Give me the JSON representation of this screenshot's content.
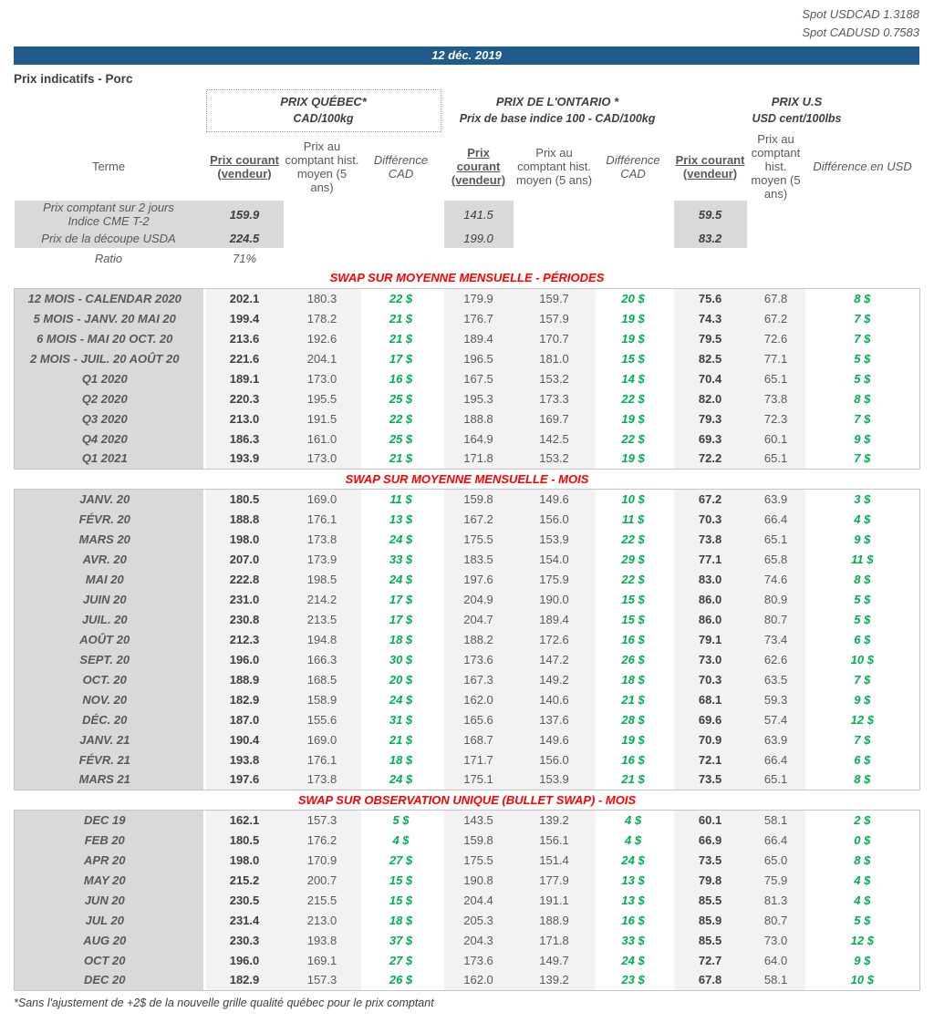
{
  "header": {
    "spot_usdcad": "Spot USDCAD 1.3188",
    "spot_cadusd": "Spot CADUSD 0.7583",
    "date": "12 déc. 2019",
    "title": "Prix indicatifs - Porc"
  },
  "columns": {
    "terme": "Terme",
    "groups": [
      {
        "id": "quebec",
        "title": "PRIX QUÉBEC*",
        "unit": "CAD/100kg",
        "cols": [
          "Prix courant (vendeur)",
          "Prix au comptant hist. moyen (5 ans)",
          "Différence CAD"
        ]
      },
      {
        "id": "ontario",
        "title": "PRIX DE L'ONTARIO *",
        "unit": "Prix de base indice 100 - CAD/100kg",
        "cols": [
          "Prix courant (vendeur)",
          "Prix au comptant hist. moyen (5 ans)",
          "Différence CAD"
        ]
      },
      {
        "id": "us",
        "title": "PRIX U.S",
        "unit": "USD cent/100lbs",
        "cols": [
          "Prix courant (vendeur)",
          "Prix au comptant hist. moyen (5 ans)",
          "Différence en USD"
        ]
      }
    ]
  },
  "spot_rows": [
    {
      "label": "Prix comptant sur 2 jours\nIndice CME T-2",
      "quebec": "159.9",
      "ontario": "141.5",
      "us": "59.5"
    },
    {
      "label": "Prix de la découpe USDA",
      "quebec": "224.5",
      "ontario": "199.0",
      "us": "83.2"
    }
  ],
  "ratio_row": {
    "label": "Ratio",
    "value": "71%"
  },
  "sections": [
    {
      "title": "SWAP SUR MOYENNE MENSUELLE - PÉRIODES",
      "rows": [
        [
          "12 MOIS - CALENDAR 2020",
          "202.1",
          "180.3",
          "22 $",
          "179.9",
          "159.7",
          "20 $",
          "75.6",
          "67.8",
          "8 $"
        ],
        [
          "5 MOIS -  JANV. 20 MAI 20",
          "199.4",
          "178.2",
          "21 $",
          "176.7",
          "157.9",
          "19 $",
          "74.3",
          "67.2",
          "7 $"
        ],
        [
          "6 MOIS -  MAI 20 OCT. 20",
          "213.6",
          "192.6",
          "21 $",
          "189.4",
          "170.7",
          "19 $",
          "79.5",
          "72.6",
          "7 $"
        ],
        [
          "2 MOIS -  JUIL. 20  AOÛT 20",
          "221.6",
          "204.1",
          "17 $",
          "196.5",
          "181.0",
          "15 $",
          "82.5",
          "77.1",
          "5 $"
        ],
        [
          "Q1 2020",
          "189.1",
          "173.0",
          "16 $",
          "167.5",
          "153.2",
          "14 $",
          "70.4",
          "65.1",
          "5 $"
        ],
        [
          "Q2 2020",
          "220.3",
          "195.5",
          "25 $",
          "195.3",
          "173.3",
          "22 $",
          "82.0",
          "73.8",
          "8 $"
        ],
        [
          "Q3 2020",
          "213.0",
          "191.5",
          "22 $",
          "188.8",
          "169.7",
          "19 $",
          "79.3",
          "72.3",
          "7 $"
        ],
        [
          "Q4 2020",
          "186.3",
          "161.0",
          "25 $",
          "164.9",
          "142.5",
          "22 $",
          "69.3",
          "60.1",
          "9 $"
        ],
        [
          "Q1 2021",
          "193.9",
          "173.0",
          "21 $",
          "171.8",
          "153.2",
          "19 $",
          "72.2",
          "65.1",
          "7 $"
        ]
      ]
    },
    {
      "title": "SWAP SUR MOYENNE MENSUELLE - MOIS",
      "rows": [
        [
          "JANV. 20",
          "180.5",
          "169.0",
          "11 $",
          "159.8",
          "149.6",
          "10 $",
          "67.2",
          "63.9",
          "3 $"
        ],
        [
          "FÉVR. 20",
          "188.8",
          "176.1",
          "13 $",
          "167.2",
          "156.0",
          "11 $",
          "70.3",
          "66.4",
          "4 $"
        ],
        [
          "MARS 20",
          "198.0",
          "173.8",
          "24 $",
          "175.5",
          "153.9",
          "22 $",
          "73.8",
          "65.1",
          "9 $"
        ],
        [
          "AVR. 20",
          "207.0",
          "173.9",
          "33 $",
          "183.5",
          "154.0",
          "29 $",
          "77.1",
          "65.8",
          "11 $"
        ],
        [
          "MAI 20",
          "222.8",
          "198.5",
          "24 $",
          "197.6",
          "175.9",
          "22 $",
          "83.0",
          "74.6",
          "8 $"
        ],
        [
          "JUIN 20",
          "231.0",
          "214.2",
          "17 $",
          "204.9",
          "190.0",
          "15 $",
          "86.0",
          "80.9",
          "5 $"
        ],
        [
          "JUIL. 20",
          "230.8",
          "213.5",
          "17 $",
          "204.7",
          "189.4",
          "15 $",
          "86.0",
          "80.7",
          "5 $"
        ],
        [
          "AOÛT 20",
          "212.3",
          "194.8",
          "18 $",
          "188.2",
          "172.6",
          "16 $",
          "79.1",
          "73.4",
          "6 $"
        ],
        [
          "SEPT. 20",
          "196.0",
          "166.3",
          "30 $",
          "173.6",
          "147.2",
          "26 $",
          "73.0",
          "62.6",
          "10 $"
        ],
        [
          "OCT. 20",
          "188.9",
          "168.5",
          "20 $",
          "167.3",
          "149.2",
          "18 $",
          "70.3",
          "63.5",
          "7 $"
        ],
        [
          "NOV. 20",
          "182.9",
          "158.9",
          "24 $",
          "162.0",
          "140.6",
          "21 $",
          "68.1",
          "59.3",
          "9 $"
        ],
        [
          "DÉC. 20",
          "187.0",
          "155.6",
          "31 $",
          "165.6",
          "137.6",
          "28 $",
          "69.6",
          "57.4",
          "12 $"
        ],
        [
          "JANV. 21",
          "190.4",
          "169.0",
          "21 $",
          "168.7",
          "149.6",
          "19 $",
          "70.9",
          "63.9",
          "7 $"
        ],
        [
          "FÉVR. 21",
          "193.8",
          "176.1",
          "18 $",
          "171.7",
          "156.0",
          "16 $",
          "72.1",
          "66.4",
          "6 $"
        ],
        [
          "MARS 21",
          "197.6",
          "173.8",
          "24 $",
          "175.1",
          "153.9",
          "21 $",
          "73.5",
          "65.1",
          "8 $"
        ]
      ]
    },
    {
      "title": "SWAP SUR OBSERVATION UNIQUE (BULLET SWAP) - MOIS",
      "rows": [
        [
          "DEC 19",
          "162.1",
          "157.3",
          "5 $",
          "143.5",
          "139.2",
          "4 $",
          "60.1",
          "58.1",
          "2 $"
        ],
        [
          "FEB 20",
          "180.5",
          "176.2",
          "4 $",
          "159.8",
          "156.1",
          "4 $",
          "66.9",
          "66.4",
          "0 $"
        ],
        [
          "APR 20",
          "198.0",
          "170.9",
          "27 $",
          "175.5",
          "151.4",
          "24 $",
          "73.5",
          "65.0",
          "8 $"
        ],
        [
          "MAY 20",
          "215.2",
          "200.7",
          "15 $",
          "190.8",
          "177.9",
          "13 $",
          "79.8",
          "75.9",
          "4 $"
        ],
        [
          "JUN 20",
          "230.5",
          "215.5",
          "15 $",
          "204.4",
          "191.1",
          "13 $",
          "85.5",
          "81.3",
          "4 $"
        ],
        [
          "JUL 20",
          "231.4",
          "213.0",
          "18 $",
          "205.3",
          "188.9",
          "16 $",
          "85.9",
          "80.7",
          "5 $"
        ],
        [
          "AUG 20",
          "230.3",
          "193.8",
          "37 $",
          "204.3",
          "171.8",
          "33 $",
          "85.5",
          "73.0",
          "12 $"
        ],
        [
          "OCT 20",
          "196.0",
          "169.1",
          "27 $",
          "173.6",
          "149.7",
          "24 $",
          "72.7",
          "64.0",
          "9 $"
        ],
        [
          "DEC 20",
          "182.9",
          "157.3",
          "26 $",
          "162.0",
          "139.2",
          "23 $",
          "67.8",
          "58.1",
          "10 $"
        ]
      ]
    }
  ],
  "footnote": "*Sans l'ajustement de +2$ de la nouvelle grille qualité québec pour le prix comptant",
  "colors": {
    "banner_blue": "#1f5c8c",
    "section_title_red": "#ff0000",
    "difference_green": "#00b050",
    "row_label_bg": "#d9d9d9",
    "value_bg": "#f2f2f2"
  }
}
